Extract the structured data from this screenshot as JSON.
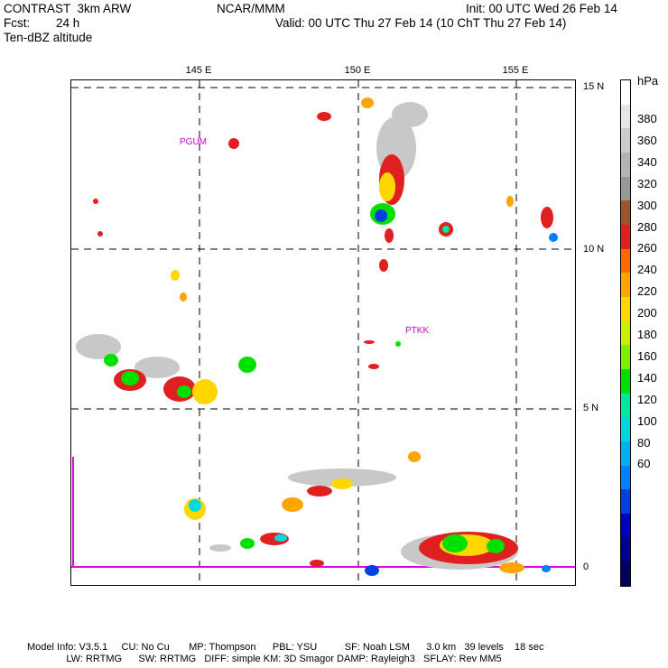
{
  "header": {
    "model": "CONTRAST  3km ARW",
    "fcst_label": "Fcst:",
    "fcst_value": "24 h",
    "field": "Ten-dBZ altitude",
    "center": "NCAR/MMM",
    "init": "Init: 00 UTC Wed 26 Feb 14",
    "valid": "Valid: 00 UTC Thu 27 Feb 14 (10 ChT Thu 27 Feb 14)"
  },
  "map": {
    "lon_labels": [
      "145 E",
      "150 E",
      "155 E"
    ],
    "lat_labels": [
      "15 N",
      "10 N",
      "5 N",
      "0"
    ],
    "stations": [
      {
        "name": "PGUM"
      },
      {
        "name": "PTKK"
      }
    ]
  },
  "colorbar": {
    "unit": "hPa",
    "levels": [
      "380",
      "360",
      "340",
      "320",
      "300",
      "280",
      "260",
      "240",
      "220",
      "200",
      "180",
      "160",
      "140",
      "120",
      "100",
      "80",
      "60"
    ],
    "colors": [
      "#ffffff",
      "#e6e6e6",
      "#cccccc",
      "#b3b3b3",
      "#999999",
      "#a0522d",
      "#e02020",
      "#ff6a00",
      "#ffa500",
      "#ffd700",
      "#c8f000",
      "#7cf000",
      "#00e000",
      "#00e8a0",
      "#00d8e0",
      "#00b0f0",
      "#0080ff",
      "#0040e0",
      "#0000c0",
      "#000090",
      "#000060"
    ]
  },
  "footer": {
    "line1": "Model Info: V3.5.1     CU: No Cu       MP: Thompson      PBL: YSU          SF: Noah LSM      3.0 km   39 levels    18 sec",
    "line2": "                        LW: RRTMG      SW: RRTMG   DIFF: simple KM: 3D Smagor DAMP: Rayleigh3   SFLAY: Rev MM5"
  }
}
